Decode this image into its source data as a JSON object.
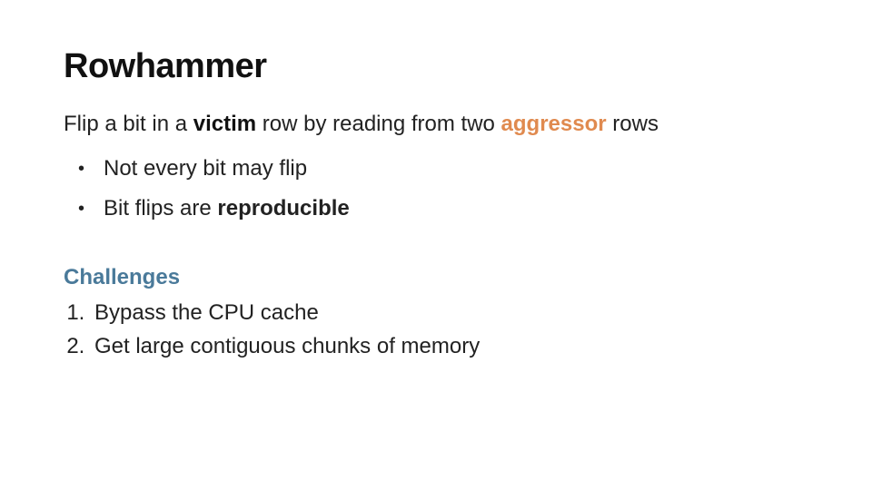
{
  "slide": {
    "title": "Rowhammer",
    "intro_prefix": "Flip a bit in a ",
    "intro_victim": "victim",
    "intro_mid": " row by reading from two ",
    "intro_aggressor": "aggressor",
    "intro_suffix": " rows",
    "bullets": [
      {
        "text": "Not every bit may flip",
        "bold_suffix": ""
      },
      {
        "text": "Bit flips are ",
        "bold_suffix": "reproducible"
      }
    ],
    "challenges_heading": "Challenges",
    "challenges": [
      "Bypass the CPU cache",
      "Get large contiguous chunks of memory"
    ]
  },
  "style": {
    "background_color": "#ffffff",
    "title_color": "#111111",
    "body_color": "#222222",
    "accent_orange": "#e08a4f",
    "accent_blue": "#4a7a9a",
    "title_fontsize_pt": 29,
    "body_fontsize_pt": 18,
    "font_family": "Segoe UI / Helvetica Neue"
  }
}
